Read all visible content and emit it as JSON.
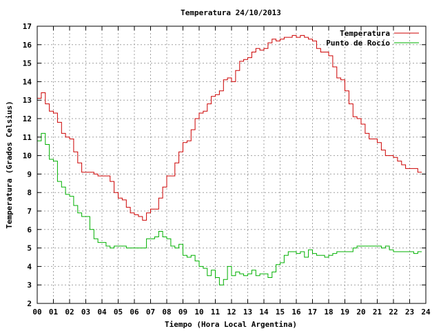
{
  "chart_data": {
    "type": "line",
    "title": "Temperatura 24/10/2013",
    "xlabel": "Tiempo (Hora Local Argentina)",
    "ylabel": "Temperatura (Grados Celsius)",
    "xlim": [
      0,
      24
    ],
    "ylim": [
      2,
      17
    ],
    "grid": true,
    "legend_position": "top-right",
    "x_ticks": [
      "00",
      "01",
      "02",
      "03",
      "04",
      "05",
      "06",
      "07",
      "08",
      "09",
      "10",
      "11",
      "12",
      "13",
      "14",
      "15",
      "16",
      "17",
      "18",
      "19",
      "20",
      "21",
      "22",
      "23",
      "24"
    ],
    "y_ticks": [
      2,
      3,
      4,
      5,
      6,
      7,
      8,
      9,
      10,
      11,
      12,
      13,
      14,
      15,
      16,
      17
    ],
    "series": [
      {
        "name": "Temperatura",
        "color": "#cc0000",
        "x": [
          0,
          0.25,
          0.5,
          0.75,
          1,
          1.25,
          1.5,
          1.75,
          2,
          2.25,
          2.5,
          2.75,
          3,
          3.25,
          3.5,
          3.75,
          4,
          4.25,
          4.5,
          4.75,
          5,
          5.25,
          5.5,
          5.75,
          6,
          6.25,
          6.5,
          6.75,
          7,
          7.25,
          7.5,
          7.75,
          8,
          8.25,
          8.5,
          8.75,
          9,
          9.25,
          9.5,
          9.75,
          10,
          10.25,
          10.5,
          10.75,
          11,
          11.25,
          11.5,
          11.75,
          12,
          12.25,
          12.5,
          12.75,
          13,
          13.25,
          13.5,
          13.75,
          14,
          14.25,
          14.5,
          14.75,
          15,
          15.25,
          15.5,
          15.75,
          16,
          16.25,
          16.5,
          16.75,
          17,
          17.25,
          17.5,
          17.75,
          18,
          18.25,
          18.5,
          18.75,
          19,
          19.25,
          19.5,
          19.75,
          20,
          20.25,
          20.5,
          20.75,
          21,
          21.25,
          21.5,
          21.75,
          22,
          22.25,
          22.5,
          22.75,
          23,
          23.25,
          23.5,
          23.75
        ],
        "values": [
          13.1,
          13.4,
          12.8,
          12.4,
          12.3,
          11.8,
          11.2,
          11.0,
          10.9,
          10.2,
          9.6,
          9.1,
          9.1,
          9.1,
          9.0,
          8.9,
          8.9,
          8.9,
          8.6,
          8.0,
          7.7,
          7.6,
          7.2,
          6.9,
          6.8,
          6.7,
          6.5,
          6.9,
          7.1,
          7.1,
          7.7,
          8.3,
          8.9,
          8.9,
          9.6,
          10.2,
          10.7,
          10.8,
          11.4,
          12.0,
          12.3,
          12.4,
          12.8,
          13.2,
          13.3,
          13.5,
          14.1,
          14.2,
          14.0,
          14.6,
          15.1,
          15.2,
          15.3,
          15.6,
          15.8,
          15.7,
          15.8,
          16.1,
          16.3,
          16.2,
          16.3,
          16.4,
          16.4,
          16.5,
          16.4,
          16.5,
          16.4,
          16.3,
          16.2,
          15.8,
          15.6,
          15.6,
          15.4,
          14.8,
          14.2,
          14.1,
          13.5,
          12.8,
          12.1,
          12.0,
          11.7,
          11.2,
          10.9,
          10.9,
          10.7,
          10.3,
          10.0,
          10.0,
          9.9,
          9.7,
          9.5,
          9.3,
          9.3,
          9.3,
          9.1,
          9.1
        ]
      },
      {
        "name": "Punto de Rocío",
        "color": "#00b000",
        "x": [
          0,
          0.25,
          0.5,
          0.75,
          1,
          1.25,
          1.5,
          1.75,
          2,
          2.25,
          2.5,
          2.75,
          3,
          3.25,
          3.5,
          3.75,
          4,
          4.25,
          4.5,
          4.75,
          5,
          5.25,
          5.5,
          5.75,
          6,
          6.25,
          6.5,
          6.75,
          7,
          7.25,
          7.5,
          7.75,
          8,
          8.25,
          8.5,
          8.75,
          9,
          9.25,
          9.5,
          9.75,
          10,
          10.25,
          10.5,
          10.75,
          11,
          11.25,
          11.5,
          11.75,
          12,
          12.25,
          12.5,
          12.75,
          13,
          13.25,
          13.5,
          13.75,
          14,
          14.25,
          14.5,
          14.75,
          15,
          15.25,
          15.5,
          15.75,
          16,
          16.25,
          16.5,
          16.75,
          17,
          17.25,
          17.5,
          17.75,
          18,
          18.25,
          18.5,
          18.75,
          19,
          19.25,
          19.5,
          19.75,
          20,
          20.25,
          20.5,
          20.75,
          21,
          21.25,
          21.5,
          21.75,
          22,
          22.25,
          22.5,
          22.75,
          23,
          23.25,
          23.5,
          23.75
        ],
        "values": [
          10.8,
          11.2,
          10.6,
          9.8,
          9.7,
          8.6,
          8.3,
          7.9,
          7.8,
          7.3,
          6.9,
          6.7,
          6.7,
          6.0,
          5.5,
          5.3,
          5.3,
          5.1,
          5.0,
          5.1,
          5.1,
          5.1,
          5.0,
          5.0,
          5.0,
          5.0,
          5.0,
          5.5,
          5.5,
          5.6,
          5.9,
          5.6,
          5.5,
          5.1,
          5.0,
          5.2,
          4.6,
          4.5,
          4.6,
          4.3,
          4.0,
          3.9,
          3.5,
          3.8,
          3.4,
          3.0,
          3.3,
          4.0,
          3.5,
          3.7,
          3.6,
          3.5,
          3.6,
          3.8,
          3.5,
          3.6,
          3.6,
          3.4,
          3.7,
          4.1,
          4.2,
          4.6,
          4.8,
          4.8,
          4.7,
          4.8,
          4.5,
          4.9,
          4.7,
          4.6,
          4.6,
          4.5,
          4.6,
          4.7,
          4.8,
          4.8,
          4.8,
          4.8,
          5.0,
          5.1,
          5.1,
          5.1,
          5.1,
          5.1,
          5.1,
          5.0,
          5.1,
          4.9,
          4.8,
          4.8,
          4.8,
          4.8,
          4.8,
          4.7,
          4.8,
          4.8
        ]
      }
    ]
  }
}
